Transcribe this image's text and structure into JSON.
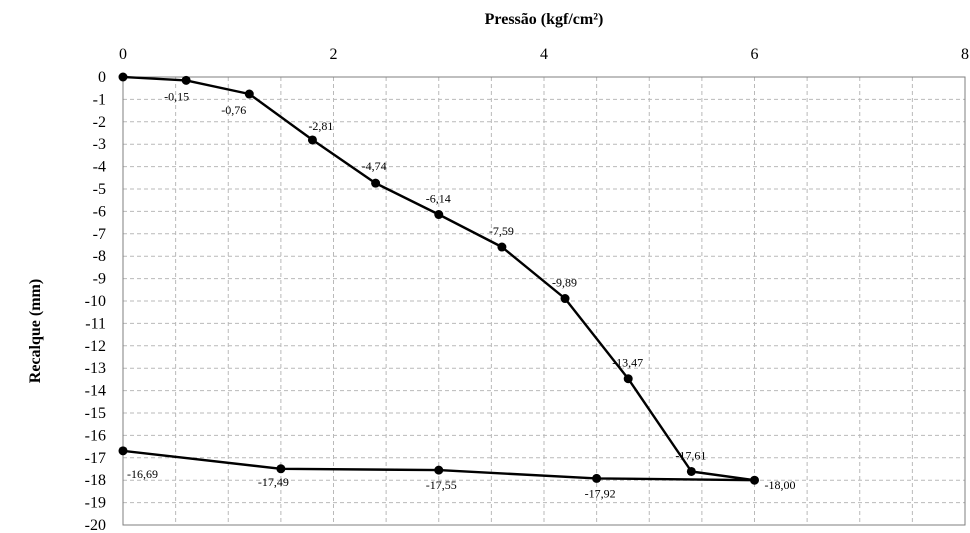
{
  "chart_data": {
    "type": "line",
    "xlabel": "Pressão (kgf/cm²)",
    "ylabel": "Recalque  (mm)",
    "xlim": [
      0,
      8
    ],
    "ylim": [
      -20,
      0
    ],
    "x_ticks": [
      "0",
      "2",
      "4",
      "6",
      "8"
    ],
    "y_ticks": [
      "0",
      "-1",
      "-2",
      "-3",
      "-4",
      "-5",
      "-6",
      "-7",
      "-8",
      "-9",
      "-10",
      "-11",
      "-12",
      "-13",
      "-14",
      "-15",
      "-16",
      "-17",
      "-18",
      "-19",
      "-20"
    ],
    "x_axis_position": "top",
    "grid": true,
    "series": [
      {
        "x": [
          0,
          0.6,
          1.2,
          1.8,
          2.4,
          3.0,
          3.6,
          4.2,
          4.8,
          5.4,
          6.0,
          4.5,
          3.0,
          1.5,
          0
        ],
        "y": [
          0,
          -0.15,
          -0.76,
          -2.81,
          -4.74,
          -6.14,
          -7.59,
          -9.89,
          -13.47,
          -17.61,
          -18.0,
          -17.92,
          -17.55,
          -17.49,
          -16.69
        ],
        "labels": [
          "",
          "-0,15",
          "-0,76",
          "-2,81",
          "-4,74",
          "-6,14",
          "-7,59",
          "-9,89",
          "-13,47",
          "-17,61",
          "-18,00",
          "-17,92",
          "-17,55",
          "-17,49",
          "-16,69"
        ]
      }
    ]
  }
}
